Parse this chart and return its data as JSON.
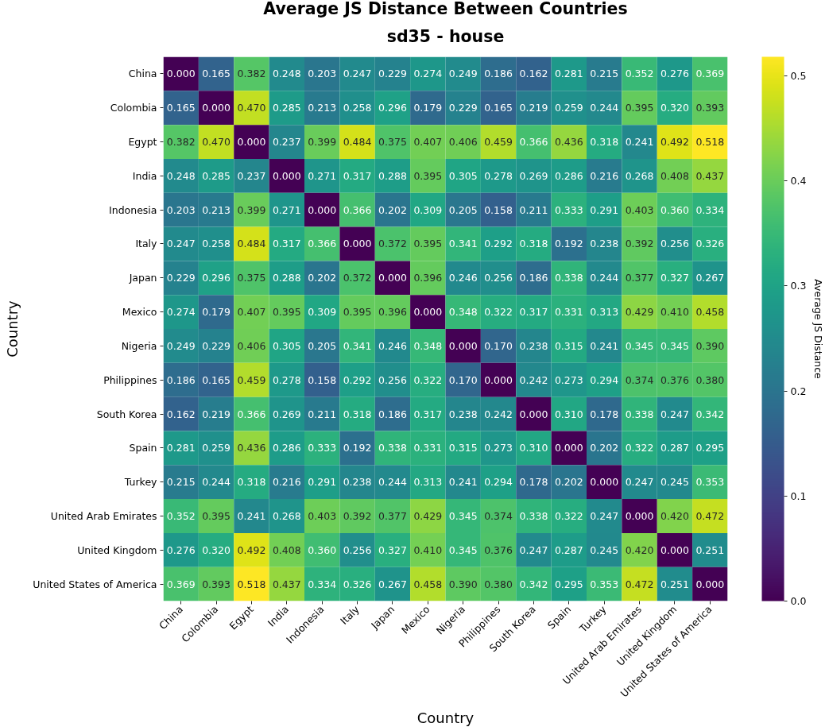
{
  "chart_data": {
    "type": "heatmap",
    "title": "Average JS Distance Between Countries",
    "subtitle": "sd35 - house",
    "xlabel": "Country",
    "ylabel": "Country",
    "clabel": "Average JS Distance",
    "categories": [
      "China",
      "Colombia",
      "Egypt",
      "India",
      "Indonesia",
      "Italy",
      "Japan",
      "Mexico",
      "Nigeria",
      "Philippines",
      "South Korea",
      "Spain",
      "Turkey",
      "United Arab Emirates",
      "United Kingdom",
      "United States of America"
    ],
    "y_categories": [
      "China",
      "Colombia",
      "Egypt",
      "India",
      "Indonesia",
      "Italy",
      "Japan",
      "Mexico",
      "Nigeria",
      "Philippines",
      "South Korea",
      "Spain",
      "Turkey",
      "United Arab Emirates",
      "United Kingdom",
      "United States of America"
    ],
    "cells": [
      [
        0.0,
        0.165,
        0.382,
        0.248,
        0.203,
        0.247,
        0.229,
        0.274,
        0.249,
        0.186,
        0.162,
        0.281,
        0.215,
        0.352,
        0.276,
        0.369
      ],
      [
        0.165,
        0.0,
        0.47,
        0.285,
        0.213,
        0.258,
        0.296,
        0.179,
        0.229,
        0.165,
        0.219,
        0.259,
        0.244,
        0.395,
        0.32,
        0.393
      ],
      [
        0.382,
        0.47,
        0.0,
        0.237,
        0.399,
        0.484,
        0.375,
        0.407,
        0.406,
        0.459,
        0.366,
        0.436,
        0.318,
        0.241,
        0.492,
        0.518
      ],
      [
        0.248,
        0.285,
        0.237,
        0.0,
        0.271,
        0.317,
        0.288,
        0.395,
        0.305,
        0.278,
        0.269,
        0.286,
        0.216,
        0.268,
        0.408,
        0.437
      ],
      [
        0.203,
        0.213,
        0.399,
        0.271,
        0.0,
        0.366,
        0.202,
        0.309,
        0.205,
        0.158,
        0.211,
        0.333,
        0.291,
        0.403,
        0.36,
        0.334
      ],
      [
        0.247,
        0.258,
        0.484,
        0.317,
        0.366,
        0.0,
        0.372,
        0.395,
        0.341,
        0.292,
        0.318,
        0.192,
        0.238,
        0.392,
        0.256,
        0.326
      ],
      [
        0.229,
        0.296,
        0.375,
        0.288,
        0.202,
        0.372,
        0.0,
        0.396,
        0.246,
        0.256,
        0.186,
        0.338,
        0.244,
        0.377,
        0.327,
        0.267
      ],
      [
        0.274,
        0.179,
        0.407,
        0.395,
        0.309,
        0.395,
        0.396,
        0.0,
        0.348,
        0.322,
        0.317,
        0.331,
        0.313,
        0.429,
        0.41,
        0.458
      ],
      [
        0.249,
        0.229,
        0.406,
        0.305,
        0.205,
        0.341,
        0.246,
        0.348,
        0.0,
        0.17,
        0.238,
        0.315,
        0.241,
        0.345,
        0.345,
        0.39
      ],
      [
        0.186,
        0.165,
        0.459,
        0.278,
        0.158,
        0.292,
        0.256,
        0.322,
        0.17,
        0.0,
        0.242,
        0.273,
        0.294,
        0.374,
        0.376,
        0.38
      ],
      [
        0.162,
        0.219,
        0.366,
        0.269,
        0.211,
        0.318,
        0.186,
        0.317,
        0.238,
        0.242,
        0.0,
        0.31,
        0.178,
        0.338,
        0.247,
        0.342
      ],
      [
        0.281,
        0.259,
        0.436,
        0.286,
        0.333,
        0.192,
        0.338,
        0.331,
        0.315,
        0.273,
        0.31,
        0.0,
        0.202,
        0.322,
        0.287,
        0.295
      ],
      [
        0.215,
        0.244,
        0.318,
        0.216,
        0.291,
        0.238,
        0.244,
        0.313,
        0.241,
        0.294,
        0.178,
        0.202,
        0.0,
        0.247,
        0.245,
        0.353
      ],
      [
        0.352,
        0.395,
        0.241,
        0.268,
        0.403,
        0.392,
        0.377,
        0.429,
        0.345,
        0.374,
        0.338,
        0.322,
        0.247,
        0.0,
        0.42,
        0.472
      ],
      [
        0.276,
        0.32,
        0.492,
        0.408,
        0.36,
        0.256,
        0.327,
        0.41,
        0.345,
        0.376,
        0.247,
        0.287,
        0.245,
        0.42,
        0.0,
        0.251
      ],
      [
        0.369,
        0.393,
        0.518,
        0.437,
        0.334,
        0.326,
        0.267,
        0.458,
        0.39,
        0.38,
        0.342,
        0.295,
        0.353,
        0.472,
        0.251,
        0.0
      ]
    ],
    "cell_labels": [
      [
        "0.000",
        "0.165",
        "0.382",
        "0.248",
        "0.203",
        "0.247",
        "0.229",
        "0.274",
        "0.249",
        "0.186",
        "0.162",
        "0.281",
        "0.215",
        "0.352",
        "0.276",
        "0.369"
      ],
      [
        "0.165",
        "0.000",
        "0.470",
        "0.285",
        "0.213",
        "0.258",
        "0.296",
        "0.179",
        "0.229",
        "0.165",
        "0.219",
        "0.259",
        "0.244",
        "0.395",
        "0.320",
        "0.393"
      ],
      [
        "0.382",
        "0.470",
        "0.000",
        "0.237",
        "0.399",
        "0.484",
        "0.375",
        "0.407",
        "0.406",
        "0.459",
        "0.366",
        "0.436",
        "0.318",
        "0.241",
        "0.492",
        "0.518"
      ],
      [
        "0.248",
        "0.285",
        "0.237",
        "0.000",
        "0.271",
        "0.317",
        "0.288",
        "0.395",
        "0.305",
        "0.278",
        "0.269",
        "0.286",
        "0.216",
        "0.268",
        "0.408",
        "0.437"
      ],
      [
        "0.203",
        "0.213",
        "0.399",
        "0.271",
        "0.000",
        "0.366",
        "0.202",
        "0.309",
        "0.205",
        "0.158",
        "0.211",
        "0.333",
        "0.291",
        "0.403",
        "0.360",
        "0.334"
      ],
      [
        "0.247",
        "0.258",
        "0.484",
        "0.317",
        "0.366",
        "0.000",
        "0.372",
        "0.395",
        "0.341",
        "0.292",
        "0.318",
        "0.192",
        "0.238",
        "0.392",
        "0.256",
        "0.326"
      ],
      [
        "0.229",
        "0.296",
        "0.375",
        "0.288",
        "0.202",
        "0.372",
        "0.000",
        "0.396",
        "0.246",
        "0.256",
        "0.186",
        "0.338",
        "0.244",
        "0.377",
        "0.327",
        "0.267"
      ],
      [
        "0.274",
        "0.179",
        "0.407",
        "0.395",
        "0.309",
        "0.395",
        "0.396",
        "0.000",
        "0.348",
        "0.322",
        "0.317",
        "0.331",
        "0.313",
        "0.429",
        "0.410",
        "0.458"
      ],
      [
        "0.249",
        "0.229",
        "0.406",
        "0.305",
        "0.205",
        "0.341",
        "0.246",
        "0.348",
        "0.000",
        "0.170",
        "0.238",
        "0.315",
        "0.241",
        "0.345",
        "0.345",
        "0.390"
      ],
      [
        "0.186",
        "0.165",
        "0.459",
        "0.278",
        "0.158",
        "0.292",
        "0.256",
        "0.322",
        "0.170",
        "0.000",
        "0.242",
        "0.273",
        "0.294",
        "0.374",
        "0.376",
        "0.380"
      ],
      [
        "0.162",
        "0.219",
        "0.366",
        "0.269",
        "0.211",
        "0.318",
        "0.186",
        "0.317",
        "0.238",
        "0.242",
        "0.000",
        "0.310",
        "0.178",
        "0.338",
        "0.247",
        "0.342"
      ],
      [
        "0.281",
        "0.259",
        "0.436",
        "0.286",
        "0.333",
        "0.192",
        "0.338",
        "0.331",
        "0.315",
        "0.273",
        "0.310",
        "0.000",
        "0.202",
        "0.322",
        "0.287",
        "0.295"
      ],
      [
        "0.215",
        "0.244",
        "0.318",
        "0.216",
        "0.291",
        "0.238",
        "0.244",
        "0.313",
        "0.241",
        "0.294",
        "0.178",
        "0.202",
        "0.000",
        "0.247",
        "0.245",
        "0.353"
      ],
      [
        "0.352",
        "0.395",
        "0.241",
        "0.268",
        "0.403",
        "0.392",
        "0.377",
        "0.429",
        "0.345",
        "0.374",
        "0.338",
        "0.322",
        "0.247",
        "0.000",
        "0.420",
        "0.472"
      ],
      [
        "0.276",
        "0.320",
        "0.492",
        "0.408",
        "0.360",
        "0.256",
        "0.327",
        "0.410",
        "0.345",
        "0.376",
        "0.247",
        "0.287",
        "0.245",
        "0.420",
        "0.000",
        "0.251"
      ],
      [
        "0.369",
        "0.393",
        "0.518",
        "0.437",
        "0.334",
        "0.326",
        "0.267",
        "0.458",
        "0.390",
        "0.380",
        "0.342",
        "0.295",
        "0.353",
        "0.472",
        "0.251",
        "0.000"
      ]
    ],
    "clim": [
      0,
      0.518
    ],
    "cticks": [
      {
        "value": 0,
        "label": "0.0"
      },
      0.1,
      0.2,
      0.3,
      0.4,
      0.5
    ]
  }
}
